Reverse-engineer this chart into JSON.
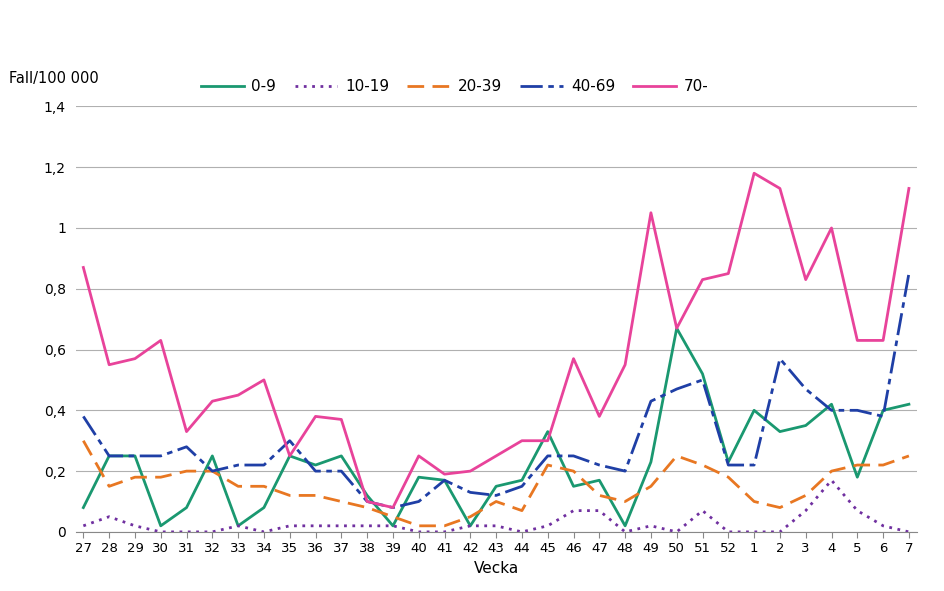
{
  "weeks": [
    27,
    28,
    29,
    30,
    31,
    32,
    33,
    34,
    35,
    36,
    37,
    38,
    39,
    40,
    41,
    42,
    43,
    44,
    45,
    46,
    47,
    48,
    49,
    50,
    51,
    52,
    1,
    2,
    3,
    4,
    5,
    6,
    7
  ],
  "series": {
    "0-9": [
      0.08,
      0.25,
      0.25,
      0.02,
      0.08,
      0.25,
      0.02,
      0.08,
      0.25,
      0.22,
      0.25,
      0.12,
      0.02,
      0.18,
      0.17,
      0.02,
      0.15,
      0.17,
      0.33,
      0.15,
      0.17,
      0.02,
      0.23,
      0.67,
      0.52,
      0.23,
      0.4,
      0.33,
      0.35,
      0.42,
      0.18,
      0.4,
      0.42
    ],
    "10-19": [
      0.02,
      0.05,
      0.02,
      0.0,
      0.0,
      0.0,
      0.02,
      0.0,
      0.02,
      0.02,
      0.02,
      0.02,
      0.02,
      0.0,
      0.0,
      0.02,
      0.02,
      0.0,
      0.02,
      0.07,
      0.07,
      0.0,
      0.02,
      0.0,
      0.07,
      0.0,
      0.0,
      0.0,
      0.07,
      0.17,
      0.07,
      0.02,
      0.0
    ],
    "20-39": [
      0.3,
      0.15,
      0.18,
      0.18,
      0.2,
      0.2,
      0.15,
      0.15,
      0.12,
      0.12,
      0.1,
      0.08,
      0.05,
      0.02,
      0.02,
      0.05,
      0.1,
      0.07,
      0.22,
      0.2,
      0.12,
      0.1,
      0.15,
      0.25,
      0.22,
      0.18,
      0.1,
      0.08,
      0.12,
      0.2,
      0.22,
      0.22,
      0.25
    ],
    "40-69": [
      0.38,
      0.25,
      0.25,
      0.25,
      0.28,
      0.2,
      0.22,
      0.22,
      0.3,
      0.2,
      0.2,
      0.1,
      0.08,
      0.1,
      0.17,
      0.13,
      0.12,
      0.15,
      0.25,
      0.25,
      0.22,
      0.2,
      0.43,
      0.47,
      0.5,
      0.22,
      0.22,
      0.57,
      0.47,
      0.4,
      0.4,
      0.38,
      0.85
    ],
    "70-": [
      0.87,
      0.55,
      0.57,
      0.63,
      0.33,
      0.43,
      0.45,
      0.5,
      0.25,
      0.38,
      0.37,
      0.1,
      0.08,
      0.25,
      0.19,
      0.2,
      0.25,
      0.3,
      0.3,
      0.57,
      0.38,
      0.55,
      1.05,
      0.67,
      0.83,
      0.85,
      1.18,
      1.13,
      0.83,
      1.0,
      0.63,
      0.63,
      1.13
    ]
  },
  "colors": {
    "0-9": "#1a9870",
    "10-19": "#7030a0",
    "20-39": "#e87722",
    "40-69": "#1f3fa6",
    "70-": "#e8439a"
  },
  "x_tick_labels": [
    "27",
    "28",
    "29",
    "30",
    "31",
    "32",
    "33",
    "34",
    "35",
    "36",
    "37",
    "38",
    "39",
    "40",
    "41",
    "42",
    "43",
    "44",
    "45",
    "46",
    "47",
    "48",
    "49",
    "50",
    "51",
    "52",
    "1",
    "2",
    "3",
    "4",
    "5",
    "6",
    "7"
  ],
  "ylabel_text": "Fall/100 000",
  "xlabel": "Vecka",
  "ylim": [
    0,
    1.4
  ],
  "yticks": [
    0,
    0.2,
    0.4,
    0.6,
    0.8,
    1.0,
    1.2,
    1.4
  ],
  "ytick_labels": [
    "0",
    "0,2",
    "0,4",
    "0,6",
    "0,8",
    "1",
    "1,2",
    "1,4"
  ],
  "background_color": "#ffffff",
  "grid_color": "#b0b0b0",
  "legend_order": [
    "0-9",
    "10-19",
    "20-39",
    "40-69",
    "70-"
  ]
}
